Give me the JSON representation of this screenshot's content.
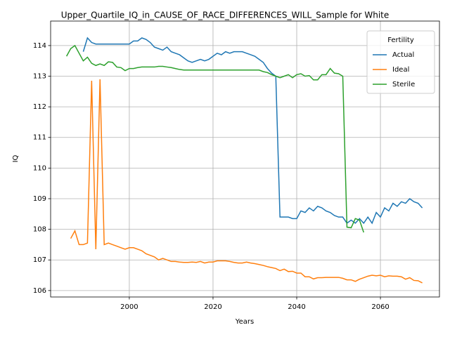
{
  "chart_data": {
    "type": "line",
    "title": "Upper_Quartile_IQ_in_CAUSE_OF_RACE_DIFFERENCES_WILL_Sample for White",
    "x_label": "Years",
    "y_label": "IQ",
    "x": [
      1985,
      1986,
      1987,
      1988,
      1989,
      1990,
      1991,
      1992,
      1993,
      1994,
      1995,
      1996,
      1997,
      1998,
      1999,
      2000,
      2001,
      2002,
      2003,
      2004,
      2005,
      2006,
      2007,
      2008,
      2009,
      2010,
      2011,
      2012,
      2013,
      2014,
      2015,
      2016,
      2017,
      2018,
      2019,
      2020,
      2021,
      2022,
      2023,
      2024,
      2025,
      2026,
      2027,
      2028,
      2029,
      2030,
      2031,
      2032,
      2033,
      2034,
      2035,
      2036,
      2037,
      2038,
      2039,
      2040,
      2041,
      2042,
      2043,
      2044,
      2045,
      2046,
      2047,
      2048,
      2049,
      2050,
      2051,
      2052,
      2053,
      2054,
      2055,
      2056,
      2057,
      2058,
      2059,
      2060,
      2061,
      2062,
      2063,
      2064,
      2065,
      2066,
      2067,
      2068,
      2069,
      2070
    ],
    "series": [
      {
        "name": "Actual",
        "color": "#1f77b4",
        "values": [
          null,
          null,
          null,
          null,
          113.8,
          114.25,
          114.1,
          114.05,
          114.05,
          114.05,
          114.05,
          114.05,
          114.05,
          114.05,
          114.05,
          114.05,
          114.15,
          114.15,
          114.25,
          114.2,
          114.1,
          113.95,
          113.9,
          113.85,
          113.95,
          113.8,
          113.75,
          113.7,
          113.6,
          113.5,
          113.45,
          113.5,
          113.55,
          113.5,
          113.55,
          113.65,
          113.75,
          113.7,
          113.8,
          113.75,
          113.8,
          113.8,
          113.8,
          113.75,
          113.7,
          113.65,
          113.55,
          113.45,
          113.25,
          113.1,
          113.0,
          108.4,
          108.4,
          108.4,
          108.35,
          108.35,
          108.6,
          108.55,
          108.7,
          108.6,
          108.75,
          108.7,
          108.6,
          108.55,
          108.45,
          108.4,
          108.4,
          108.2,
          108.3,
          108.2,
          108.35,
          108.2,
          108.4,
          108.2,
          108.55,
          108.4,
          108.7,
          108.6,
          108.85,
          108.75,
          108.9,
          108.85,
          109.0,
          108.9,
          108.85,
          108.7
        ]
      },
      {
        "name": "Ideal",
        "color": "#ff7f0e",
        "values": [
          null,
          107.7,
          107.95,
          107.5,
          107.5,
          107.55,
          112.85,
          107.35,
          112.9,
          107.5,
          107.55,
          107.5,
          107.45,
          107.4,
          107.35,
          107.4,
          107.4,
          107.35,
          107.3,
          107.2,
          107.15,
          107.1,
          107.0,
          107.05,
          107.0,
          106.95,
          106.95,
          106.93,
          106.92,
          106.92,
          106.93,
          106.92,
          106.95,
          106.9,
          106.93,
          106.93,
          106.97,
          106.97,
          106.97,
          106.95,
          106.92,
          106.9,
          106.9,
          106.93,
          106.9,
          106.88,
          106.85,
          106.82,
          106.78,
          106.75,
          106.72,
          106.65,
          106.7,
          106.62,
          106.63,
          106.57,
          106.57,
          106.45,
          106.45,
          106.38,
          106.42,
          106.42,
          106.43,
          106.43,
          106.43,
          106.43,
          106.4,
          106.35,
          106.35,
          106.3,
          106.37,
          106.42,
          106.47,
          106.5,
          106.48,
          106.5,
          106.45,
          106.48,
          106.47,
          106.47,
          106.45,
          106.37,
          106.42,
          106.33,
          106.32,
          106.25
        ]
      },
      {
        "name": "Sterile",
        "color": "#2ca02c",
        "values": [
          113.65,
          113.9,
          114.0,
          113.75,
          113.5,
          113.62,
          113.42,
          113.35,
          113.4,
          113.35,
          113.47,
          113.45,
          113.3,
          113.28,
          113.18,
          113.25,
          113.25,
          113.28,
          113.3,
          113.3,
          113.3,
          113.3,
          113.32,
          113.32,
          113.3,
          113.28,
          113.25,
          113.22,
          113.2,
          113.2,
          113.2,
          113.2,
          113.2,
          113.2,
          113.2,
          113.2,
          113.2,
          113.2,
          113.2,
          113.2,
          113.2,
          113.2,
          113.2,
          113.2,
          113.2,
          113.2,
          113.2,
          113.15,
          113.12,
          113.05,
          113.0,
          112.95,
          113.0,
          113.05,
          112.95,
          113.05,
          113.08,
          113.0,
          113.02,
          112.88,
          112.88,
          113.05,
          113.05,
          113.25,
          113.1,
          113.08,
          113.0,
          108.07,
          108.05,
          108.35,
          108.3,
          107.9,
          null,
          null,
          null,
          null,
          null,
          null,
          null,
          null,
          null,
          null,
          null,
          null,
          null,
          null
        ]
      }
    ],
    "xlim": [
      1981.2,
      2074.1
    ],
    "ylim": [
      105.79,
      114.8
    ],
    "xticks": [
      2000,
      2020,
      2040,
      2060
    ],
    "yticks": [
      106,
      107,
      108,
      109,
      110,
      111,
      112,
      113,
      114
    ],
    "grid": true,
    "legend_title": "Fertility",
    "legend_position": "upper right"
  }
}
